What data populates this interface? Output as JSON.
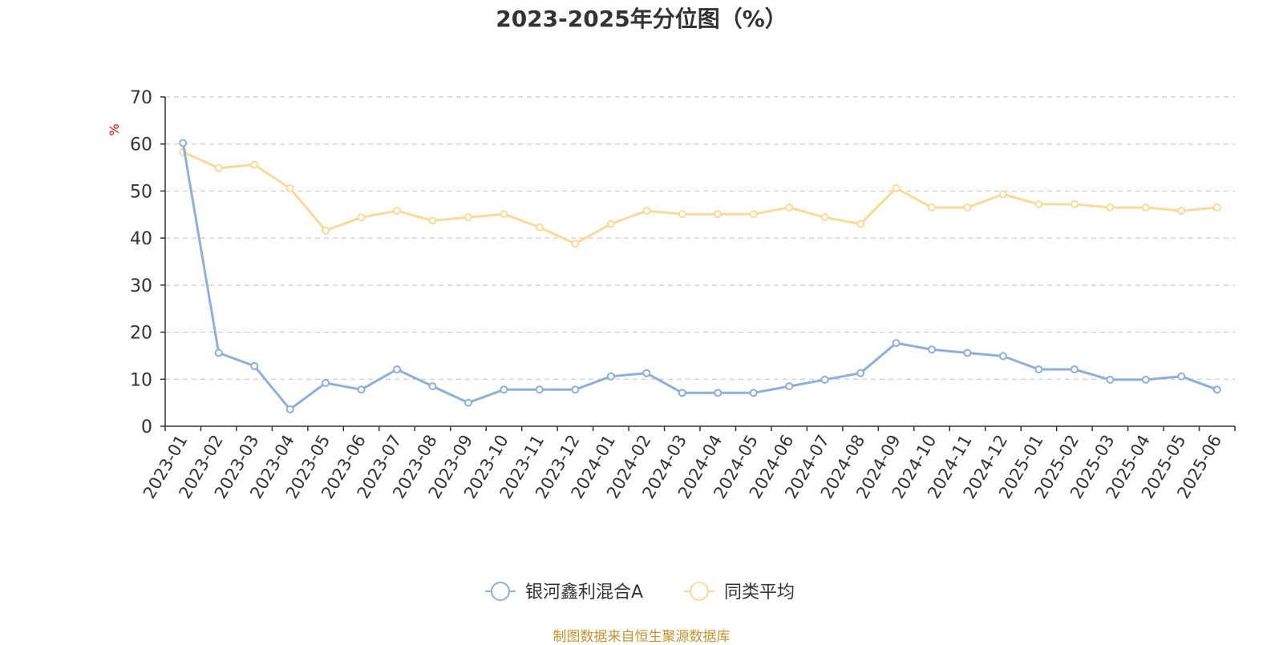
{
  "title": "2023-2025年分位图（%）",
  "footer": "制图数据来自恒生聚源数据库",
  "chart_data": {
    "type": "line",
    "title": "2023-2025年分位图（%）",
    "ylabel": "%",
    "ylim": [
      0,
      70
    ],
    "yticks": [
      0,
      10,
      20,
      30,
      40,
      50,
      60,
      70
    ],
    "grid": true,
    "legend_position": "bottom-center",
    "categories": [
      "2023-01",
      "2023-02",
      "2023-03",
      "2023-04",
      "2023-05",
      "2023-06",
      "2023-07",
      "2023-08",
      "2023-09",
      "2023-10",
      "2023-11",
      "2023-12",
      "2024-01",
      "2024-02",
      "2024-03",
      "2024-04",
      "2024-05",
      "2024-06",
      "2024-07",
      "2024-08",
      "2024-09",
      "2024-10",
      "2024-11",
      "2024-12",
      "2025-01",
      "2025-02",
      "2025-03",
      "2025-04",
      "2025-05",
      "2025-06"
    ],
    "series": [
      {
        "name": "银河鑫利混合A",
        "color": "#8eaedb",
        "values": [
          60.2,
          15.6,
          12.8,
          3.6,
          9.2,
          7.8,
          12.1,
          8.5,
          5.0,
          7.8,
          7.8,
          7.8,
          10.6,
          11.3,
          7.1,
          7.1,
          7.1,
          8.5,
          9.9,
          11.3,
          17.7,
          16.3,
          15.6,
          14.9,
          12.1,
          12.1,
          9.9,
          9.9,
          10.6,
          7.8
        ]
      },
      {
        "name": "同类平均",
        "color": "#fbd999",
        "values": [
          58.3,
          54.9,
          55.6,
          50.6,
          41.6,
          44.4,
          45.8,
          43.7,
          44.4,
          45.1,
          42.3,
          38.8,
          43.0,
          45.8,
          45.1,
          45.1,
          45.1,
          46.5,
          44.4,
          43.0,
          50.6,
          46.5,
          46.5,
          49.3,
          47.2,
          47.2,
          46.5,
          46.5,
          45.8,
          46.5
        ]
      }
    ]
  }
}
